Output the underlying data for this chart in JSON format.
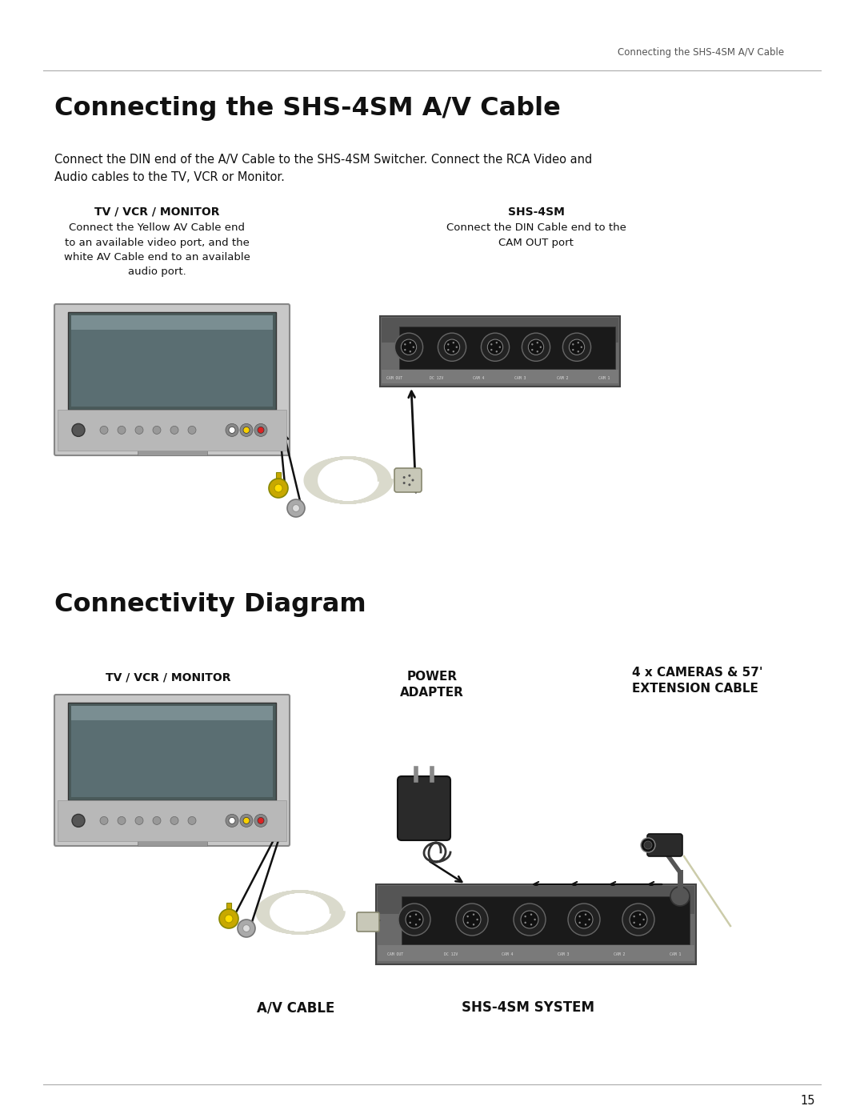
{
  "page_header_text": "Connecting the SHS-4SM A/V Cable",
  "page_number": "15",
  "background_color": "#ffffff",
  "text_color": "#000000",
  "line_color": "#aaaaaa",
  "header_text_color": "#555555",
  "arrow_color": "#111111",
  "section1_title": "Connecting the SHS-4SM A/V Cable",
  "section1_body": "Connect the DIN end of the A/V Cable to the SHS-4SM Switcher. Connect the RCA Video and\nAudio cables to the TV, VCR or Monitor.",
  "tv_label_bold": "TV / VCR / MONITOR",
  "tv_desc": "Connect the Yellow AV Cable end\nto an available video port, and the\nwhite AV Cable end to an available\naudio port.",
  "shs_label_bold": "SHS-4SM",
  "shs_desc": "Connect the DIN Cable end to the\nCAM OUT port",
  "section2_title": "Connectivity Diagram",
  "tv2_label": "TV / VCR / MONITOR",
  "power_label": "POWER\nADAPTER",
  "cam_label": "4 x CAMERAS & 57'\nEXTENSION CABLE",
  "av_cable_label": "A/V CABLE",
  "shs_system_label": "SHS-4SM SYSTEM"
}
